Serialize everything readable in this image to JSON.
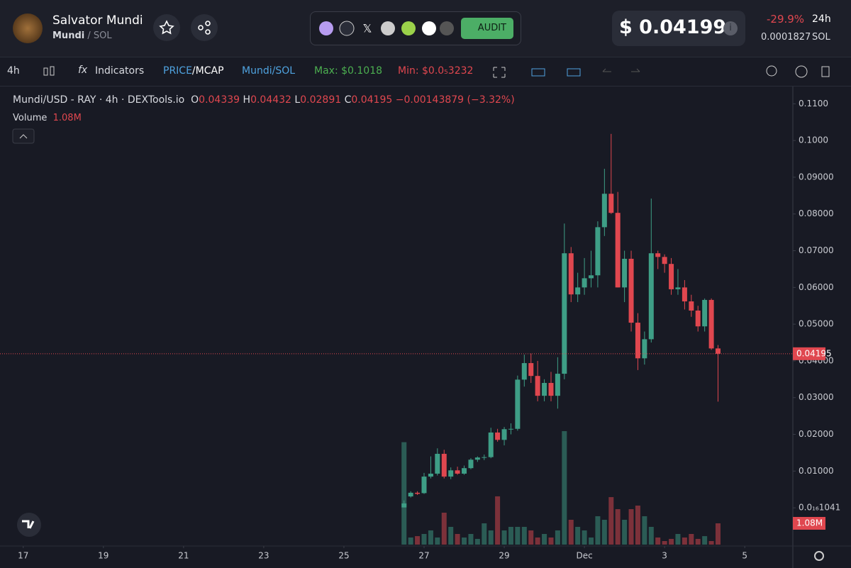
{
  "header": {
    "name": "Salvator Mundi",
    "symbol": "Mundi",
    "pair": "/ SOL",
    "audit": "AUDIT",
    "price": "$ 0.04199",
    "change": "-29.9%",
    "period": "24h",
    "price_native": "0.0001827",
    "native": "SOL"
  },
  "toolbar": {
    "interval": "4h",
    "indicators": "Indicators",
    "price": "PRICE",
    "mcap": "/MCAP",
    "pair": "Mundi/SOL",
    "max": "Max: $0.1018",
    "min": "Min: $0.0₅3232"
  },
  "chart_data": {
    "type": "candlestick",
    "title": "Mundi/USD - RAY · 4h · DEXTools.io",
    "ohlc_letters": [
      "O",
      "H",
      "L",
      "C"
    ],
    "change_text": "−0.00143879 (−3.32%)",
    "x": [
      26.5,
      26.667,
      26.833,
      27,
      27.167,
      27.333,
      27.5,
      27.667,
      27.833,
      28,
      28.167,
      28.333,
      28.5,
      28.667,
      28.833,
      29,
      29.167,
      29.333,
      29.5,
      29.667,
      29.833,
      30,
      30.167,
      30.333,
      30.5,
      30.667,
      30.833,
      31,
      31.167,
      31.333,
      31.5,
      31.667,
      31.833,
      32,
      32.167,
      32.333,
      32.5,
      32.667,
      32.833,
      33,
      33.167,
      33.333,
      33.5,
      33.667,
      33.833,
      34,
      34.167,
      34.333
    ],
    "open": [
      0.0001,
      0.0031,
      0.0041,
      0.004,
      0.0085,
      0.0093,
      0.0147,
      0.0085,
      0.0102,
      0.0093,
      0.0108,
      0.0131,
      0.0137,
      0.0138,
      0.0205,
      0.0185,
      0.0214,
      0.0215,
      0.0349,
      0.0394,
      0.0359,
      0.0305,
      0.034,
      0.0305,
      0.0365,
      0.0693,
      0.0581,
      0.06,
      0.0625,
      0.0633,
      0.0764,
      0.0855,
      0.0803,
      0.06,
      0.0678,
      0.0504,
      0.0407,
      0.0459,
      0.0693,
      0.0683,
      0.0664,
      0.0595,
      0.06,
      0.0562,
      0.0537,
      0.0494,
      0.0566,
      0.04339
    ],
    "high": [
      0.002,
      0.0045,
      0.0045,
      0.0095,
      0.014,
      0.0162,
      0.0158,
      0.011,
      0.0112,
      0.0115,
      0.0135,
      0.014,
      0.0145,
      0.0218,
      0.0215,
      0.022,
      0.023,
      0.036,
      0.0417,
      0.042,
      0.04,
      0.035,
      0.037,
      0.041,
      0.0774,
      0.071,
      0.064,
      0.068,
      0.07,
      0.078,
      0.0923,
      0.1018,
      0.086,
      0.07,
      0.07,
      0.053,
      0.048,
      0.0842,
      0.07,
      0.069,
      0.068,
      0.065,
      0.062,
      0.058,
      0.055,
      0.057,
      0.057,
      0.04432
    ],
    "low": [
      0.0001,
      0.0028,
      0.0035,
      0.0038,
      0.008,
      0.0088,
      0.008,
      0.0078,
      0.009,
      0.009,
      0.0105,
      0.0125,
      0.013,
      0.0135,
      0.018,
      0.017,
      0.02,
      0.021,
      0.033,
      0.034,
      0.029,
      0.029,
      0.029,
      0.027,
      0.035,
      0.056,
      0.056,
      0.058,
      0.06,
      0.06,
      0.074,
      0.08,
      0.06,
      0.056,
      0.048,
      0.0375,
      0.039,
      0.045,
      0.065,
      0.064,
      0.058,
      0.058,
      0.054,
      0.052,
      0.048,
      0.048,
      0.043,
      0.02891
    ],
    "close": [
      0.0012,
      0.0041,
      0.0038,
      0.0085,
      0.0093,
      0.0147,
      0.0085,
      0.0102,
      0.0093,
      0.0108,
      0.0131,
      0.0137,
      0.0138,
      0.0205,
      0.0185,
      0.0214,
      0.0215,
      0.0349,
      0.0394,
      0.0359,
      0.0305,
      0.034,
      0.0305,
      0.0365,
      0.0693,
      0.0581,
      0.06,
      0.0625,
      0.0633,
      0.0764,
      0.0855,
      0.0803,
      0.06,
      0.0678,
      0.0504,
      0.0407,
      0.0459,
      0.0693,
      0.0683,
      0.0664,
      0.0595,
      0.06,
      0.0562,
      0.0537,
      0.0494,
      0.0566,
      0.04339,
      0.04195
    ],
    "volume": {
      "name": "Volume",
      "values": [
        5200000,
        360000,
        430000,
        540000,
        720000,
        360000,
        1620000,
        900000,
        540000,
        360000,
        540000,
        290000,
        1080000,
        720000,
        2450000,
        720000,
        900000,
        900000,
        900000,
        720000,
        360000,
        540000,
        360000,
        720000,
        5760000,
        1260000,
        900000,
        720000,
        360000,
        1440000,
        1260000,
        2410000,
        1800000,
        1260000,
        1800000,
        1980000,
        1440000,
        900000,
        360000,
        180000,
        290000,
        540000,
        360000,
        540000,
        290000,
        430000,
        180000,
        1080000
      ],
      "value_labels": [
        null,
        null,
        null,
        null,
        null,
        null,
        null,
        null,
        null,
        null,
        null,
        null,
        null,
        null,
        null,
        null,
        null,
        null,
        null,
        null,
        null,
        null,
        null,
        null,
        null,
        null,
        null,
        null,
        null,
        null,
        null,
        null,
        null,
        null,
        null,
        null,
        null,
        null,
        null,
        null,
        null,
        null,
        null,
        null,
        null,
        null,
        null,
        "1.08M"
      ]
    },
    "up_color": "#3e9e86",
    "down_color": "#e0474f",
    "xlim": [
      16.42,
      36.2
    ],
    "xticks": [
      17,
      19,
      21,
      23,
      25,
      27,
      29,
      {
        "value": 31,
        "label": "Dec"
      },
      {
        "value": 33,
        "label": "3"
      },
      {
        "value": 35,
        "label": "5"
      }
    ],
    "ylim": [
      -0.0104,
      0.1147
    ],
    "yticks": [
      {
        "value": 0.11,
        "label": "0.1100"
      },
      {
        "value": 0.1,
        "label": "0.1000"
      },
      {
        "value": 0.09,
        "label": "0.09000"
      },
      {
        "value": 0.08,
        "label": "0.08000"
      },
      {
        "value": 0.07,
        "label": "0.07000"
      },
      {
        "value": 0.06,
        "label": "0.06000"
      },
      {
        "value": 0.05,
        "label": "0.05000"
      },
      {
        "value": 0.04,
        "label": "0.04000"
      },
      {
        "value": 0.03,
        "label": "0.03000"
      },
      {
        "value": 0.02,
        "label": "0.02000"
      },
      {
        "value": 0.01,
        "label": "0.01000"
      },
      {
        "value": 1.041e-17,
        "label": "0.0₁₆1041"
      }
    ],
    "last_price_line": true
  }
}
